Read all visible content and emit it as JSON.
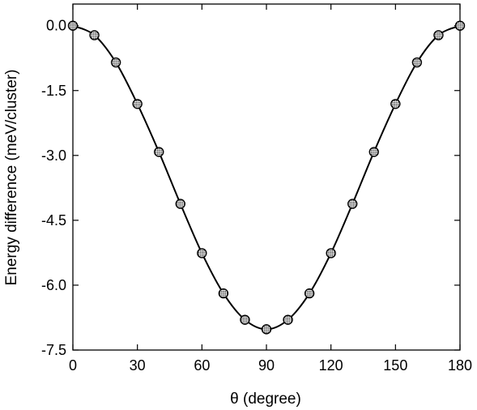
{
  "chart_data": {
    "type": "line",
    "title": "",
    "xlabel": "θ (degree)",
    "ylabel": "Energy difference (meV/cluster)",
    "xlim": [
      0,
      180
    ],
    "ylim": [
      -7.5,
      0.5
    ],
    "xticks": [
      0,
      30,
      60,
      90,
      120,
      150,
      180
    ],
    "yticks": [
      0.0,
      -1.5,
      -3.0,
      -4.5,
      -6.0,
      -7.5
    ],
    "ytick_labels": [
      "0.0",
      "-1.5",
      "-3.0",
      "-4.5",
      "-6.0",
      "-7.5"
    ],
    "grid": false,
    "series": [
      {
        "style": "markers + smooth line",
        "marker": "circle, dotted gray fill",
        "color": "#000000",
        "x": [
          0,
          10,
          20,
          30,
          40,
          50,
          60,
          70,
          80,
          90,
          100,
          110,
          120,
          130,
          140,
          150,
          160,
          170,
          180
        ],
        "y": [
          0.0,
          -0.22,
          -0.85,
          -1.81,
          -2.92,
          -4.12,
          -5.26,
          -6.19,
          -6.8,
          -7.02,
          -6.8,
          -6.19,
          -5.26,
          -4.12,
          -2.92,
          -1.81,
          -0.85,
          -0.22,
          0.0
        ]
      }
    ]
  }
}
